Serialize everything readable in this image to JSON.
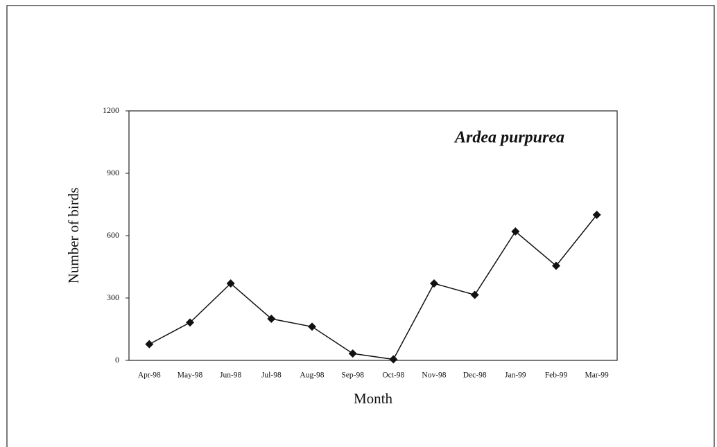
{
  "chart_data": {
    "type": "line",
    "title": "Ardea purpurea",
    "x_label": "Month",
    "y_label": "Number of birds",
    "categories": [
      "Apr-98",
      "May-98",
      "Jun-98",
      "Jul-98",
      "Aug-98",
      "Sep-98",
      "Oct-98",
      "Nov-98",
      "Dec-98",
      "Jan-99",
      "Feb-99",
      "Mar-99"
    ],
    "series": [
      {
        "name": "Ardea purpurea",
        "color": "#111111",
        "values": [
          78,
          182,
          370,
          200,
          162,
          33,
          5,
          370,
          315,
          620,
          455,
          700
        ]
      }
    ],
    "ylim": [
      0,
      1200
    ],
    "yticks": [
      0,
      300,
      600,
      900,
      1200
    ],
    "grid": false
  }
}
